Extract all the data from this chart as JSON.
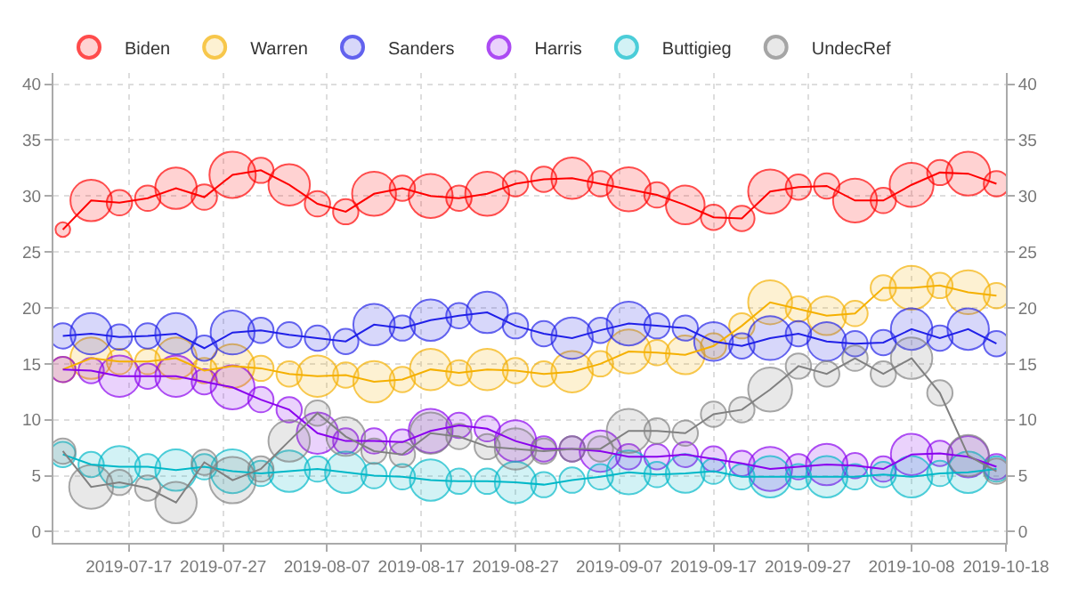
{
  "chart_data": {
    "type": "bubble",
    "x": [
      "2019-07-10",
      "2019-07-13",
      "2019-07-16",
      "2019-07-19",
      "2019-07-22",
      "2019-07-25",
      "2019-07-28",
      "2019-07-31",
      "2019-08-03",
      "2019-08-06",
      "2019-08-09",
      "2019-08-12",
      "2019-08-15",
      "2019-08-18",
      "2019-08-21",
      "2019-08-24",
      "2019-08-27",
      "2019-08-30",
      "2019-09-02",
      "2019-09-05",
      "2019-09-08",
      "2019-09-11",
      "2019-09-14",
      "2019-09-17",
      "2019-09-20",
      "2019-09-23",
      "2019-09-26",
      "2019-09-29",
      "2019-10-02",
      "2019-10-05",
      "2019-10-08",
      "2019-10-11",
      "2019-10-14",
      "2019-10-17"
    ],
    "series": [
      {
        "name": "Biden",
        "color": "#ff0000",
        "values": [
          27.0,
          29.6,
          29.4,
          29.8,
          30.7,
          29.9,
          31.9,
          32.3,
          31.0,
          29.3,
          28.6,
          30.2,
          30.7,
          30.0,
          29.8,
          30.2,
          31.1,
          31.5,
          31.6,
          31.1,
          30.6,
          30.1,
          29.2,
          28.1,
          28.0,
          30.4,
          30.8,
          30.9,
          29.6,
          29.6,
          31.0,
          32.1,
          32.0,
          31.1
        ],
        "sizes": [
          0.1,
          0.8,
          0.3,
          0.3,
          0.8,
          0.3,
          1.0,
          0.3,
          0.8,
          0.3,
          0.3,
          0.9,
          0.3,
          0.9,
          0.3,
          0.9,
          0.3,
          0.3,
          0.8,
          0.3,
          0.9,
          0.3,
          0.7,
          0.3,
          0.3,
          0.9,
          0.3,
          0.3,
          0.9,
          0.3,
          0.9,
          0.3,
          0.9,
          0.3
        ]
      },
      {
        "name": "Warren",
        "color": "#f5b000",
        "values": [
          14.5,
          15.5,
          15.2,
          15.2,
          15.5,
          14.4,
          14.8,
          14.6,
          14.1,
          13.9,
          14.0,
          13.4,
          13.6,
          14.5,
          14.2,
          14.5,
          14.4,
          14.1,
          14.3,
          15.0,
          16.1,
          16.0,
          15.8,
          16.6,
          18.4,
          20.5,
          19.9,
          19.3,
          19.5,
          21.8,
          21.8,
          22.0,
          21.4,
          21.1
        ],
        "sizes": [
          0.3,
          0.8,
          0.3,
          0.3,
          0.8,
          0.3,
          0.9,
          0.3,
          0.3,
          0.8,
          0.3,
          0.8,
          0.3,
          0.8,
          0.3,
          0.8,
          0.3,
          0.3,
          0.8,
          0.3,
          0.9,
          0.3,
          0.7,
          0.3,
          0.3,
          0.9,
          0.3,
          0.7,
          0.3,
          0.3,
          0.9,
          0.3,
          0.9,
          0.3
        ]
      },
      {
        "name": "Sanders",
        "color": "#2020e8",
        "values": [
          17.5,
          17.7,
          17.4,
          17.5,
          17.7,
          16.4,
          17.8,
          18.0,
          17.6,
          17.3,
          17.0,
          18.5,
          18.2,
          18.9,
          19.3,
          19.6,
          18.4,
          17.7,
          17.3,
          18.0,
          18.6,
          18.4,
          18.2,
          17.0,
          16.6,
          17.3,
          17.7,
          17.0,
          16.8,
          16.9,
          18.1,
          17.3,
          18.1,
          16.8
        ],
        "sizes": [
          0.3,
          0.8,
          0.3,
          0.3,
          0.8,
          0.3,
          0.9,
          0.3,
          0.3,
          0.3,
          0.3,
          0.8,
          0.3,
          0.8,
          0.3,
          0.8,
          0.3,
          0.3,
          0.8,
          0.3,
          0.9,
          0.3,
          0.3,
          0.7,
          0.3,
          0.9,
          0.3,
          0.7,
          0.3,
          0.3,
          0.8,
          0.3,
          0.8,
          0.3
        ]
      },
      {
        "name": "Harris",
        "color": "#8a00ee",
        "values": [
          14.5,
          14.4,
          13.9,
          13.9,
          13.9,
          13.4,
          12.9,
          11.8,
          10.9,
          8.8,
          8.1,
          8.1,
          8.0,
          9.0,
          9.5,
          9.2,
          8.1,
          7.4,
          7.4,
          7.2,
          6.7,
          6.7,
          6.9,
          6.5,
          6.1,
          5.6,
          5.8,
          6.0,
          5.9,
          5.6,
          6.9,
          7.0,
          6.7,
          5.8
        ],
        "sizes": [
          0.3,
          0.3,
          0.8,
          0.3,
          0.8,
          0.3,
          0.9,
          0.3,
          0.3,
          0.8,
          0.3,
          0.3,
          0.3,
          0.9,
          0.3,
          0.3,
          0.8,
          0.3,
          0.3,
          0.8,
          0.3,
          0.3,
          0.3,
          0.3,
          0.3,
          0.9,
          0.3,
          0.8,
          0.3,
          0.3,
          0.8,
          0.3,
          0.8,
          0.3
        ]
      },
      {
        "name": "Buttigieg",
        "color": "#00b8c8",
        "values": [
          6.9,
          6.0,
          5.8,
          5.8,
          5.5,
          5.8,
          5.4,
          5.2,
          5.4,
          5.6,
          5.3,
          5.0,
          4.9,
          4.6,
          4.5,
          4.5,
          4.4,
          4.2,
          4.6,
          4.9,
          5.3,
          5.1,
          5.2,
          5.4,
          4.9,
          4.9,
          4.9,
          4.9,
          4.9,
          5.1,
          4.9,
          5.2,
          5.3,
          5.6
        ],
        "sizes": [
          0.3,
          0.3,
          0.8,
          0.3,
          0.8,
          0.3,
          0.9,
          0.3,
          0.8,
          0.3,
          0.8,
          0.3,
          0.3,
          0.8,
          0.3,
          0.3,
          0.8,
          0.3,
          0.3,
          0.3,
          0.9,
          0.3,
          0.7,
          0.3,
          0.3,
          0.8,
          0.3,
          0.8,
          0.3,
          0.3,
          0.8,
          0.3,
          0.8,
          0.3
        ]
      },
      {
        "name": "UndecRef",
        "color": "#808080",
        "values": [
          7.2,
          4.0,
          4.4,
          3.9,
          2.6,
          6.2,
          4.6,
          5.6,
          8.1,
          10.6,
          8.5,
          7.2,
          6.9,
          8.8,
          8.5,
          7.6,
          7.4,
          7.2,
          7.4,
          7.4,
          9.0,
          9.0,
          8.8,
          10.5,
          10.9,
          12.7,
          14.8,
          14.1,
          15.5,
          14.1,
          15.5,
          12.4,
          6.8,
          5.4
        ],
        "sizes": [
          0.3,
          0.9,
          0.3,
          0.3,
          0.8,
          0.3,
          1.0,
          0.3,
          0.8,
          0.3,
          0.7,
          0.3,
          0.3,
          0.8,
          0.3,
          0.3,
          0.8,
          0.3,
          0.3,
          0.3,
          0.9,
          0.3,
          0.3,
          0.3,
          0.3,
          0.9,
          0.3,
          0.3,
          0.3,
          0.3,
          0.8,
          0.3,
          0.8,
          0.3
        ]
      },
      {
        "type": "line",
        "color": "#ff0000",
        "values": [
          27.0,
          29.6,
          29.4,
          29.8,
          30.7,
          29.9,
          31.9,
          32.3,
          31.0,
          29.3,
          28.6,
          30.2,
          30.7,
          30.0,
          29.8,
          30.2,
          31.1,
          31.5,
          31.6,
          31.1,
          30.6,
          30.1,
          29.2,
          28.1,
          28.0,
          30.4,
          30.8,
          30.9,
          29.6,
          29.6,
          31.0,
          32.1,
          32.0,
          31.1
        ]
      },
      {
        "type": "line",
        "color": "#f5b000",
        "values": [
          14.5,
          15.5,
          15.2,
          15.2,
          15.5,
          14.4,
          14.8,
          14.6,
          14.1,
          13.9,
          14.0,
          13.4,
          13.6,
          14.5,
          14.2,
          14.5,
          14.4,
          14.1,
          14.3,
          15.0,
          16.1,
          16.0,
          15.8,
          16.6,
          18.4,
          20.5,
          19.9,
          19.3,
          19.5,
          21.8,
          21.8,
          22.0,
          21.4,
          21.1
        ]
      },
      {
        "type": "line",
        "color": "#2020e8",
        "values": [
          17.5,
          17.7,
          17.4,
          17.5,
          17.7,
          16.4,
          17.8,
          18.0,
          17.6,
          17.3,
          17.0,
          18.5,
          18.2,
          18.9,
          19.3,
          19.6,
          18.4,
          17.7,
          17.3,
          18.0,
          18.6,
          18.4,
          18.2,
          17.0,
          16.6,
          17.3,
          17.7,
          17.0,
          16.8,
          16.9,
          18.1,
          17.3,
          18.1,
          16.8
        ]
      },
      {
        "type": "line",
        "color": "#8a00ee",
        "values": [
          14.5,
          14.4,
          13.9,
          13.9,
          13.9,
          13.4,
          12.9,
          11.8,
          10.9,
          8.8,
          8.1,
          8.1,
          8.0,
          9.0,
          9.5,
          9.2,
          8.1,
          7.4,
          7.4,
          7.2,
          6.7,
          6.7,
          6.9,
          6.5,
          6.1,
          5.6,
          5.8,
          6.0,
          5.9,
          5.6,
          6.9,
          7.0,
          6.7,
          5.8
        ]
      },
      {
        "type": "line",
        "color": "#00b8c8",
        "values": [
          6.9,
          6.0,
          5.8,
          5.8,
          5.5,
          5.8,
          5.4,
          5.2,
          5.4,
          5.6,
          5.3,
          5.0,
          4.9,
          4.6,
          4.5,
          4.5,
          4.4,
          4.2,
          4.6,
          4.9,
          5.3,
          5.1,
          5.2,
          5.4,
          4.9,
          4.9,
          4.9,
          4.9,
          4.9,
          5.1,
          4.9,
          5.2,
          5.3,
          5.6
        ]
      },
      {
        "type": "line",
        "color": "#808080",
        "values": [
          7.2,
          4.0,
          4.4,
          3.9,
          2.6,
          6.2,
          4.6,
          5.6,
          8.1,
          10.6,
          8.5,
          7.2,
          6.9,
          8.8,
          8.5,
          7.6,
          7.4,
          7.2,
          7.4,
          7.4,
          9.0,
          9.0,
          8.8,
          10.5,
          10.9,
          12.7,
          14.8,
          14.1,
          15.5,
          14.1,
          15.5,
          12.4,
          6.8,
          5.4
        ]
      }
    ],
    "xlim": [
      "2019-07-09",
      "2019-10-18"
    ],
    "xticks": [
      "2019-07-17",
      "2019-07-27",
      "2019-08-07",
      "2019-08-17",
      "2019-08-27",
      "2019-09-07",
      "2019-09-17",
      "2019-09-27",
      "2019-10-08",
      "2019-10-18"
    ],
    "ylim": [
      -1,
      41
    ],
    "yticks": [
      0,
      5,
      10,
      15,
      20,
      25,
      30,
      35,
      40
    ],
    "y2lim": [
      -1,
      41
    ],
    "y2ticks": [
      0,
      5,
      10,
      15,
      20,
      25,
      30,
      35,
      40
    ],
    "grid": true,
    "legend": "top left",
    "line_style": "solid"
  }
}
